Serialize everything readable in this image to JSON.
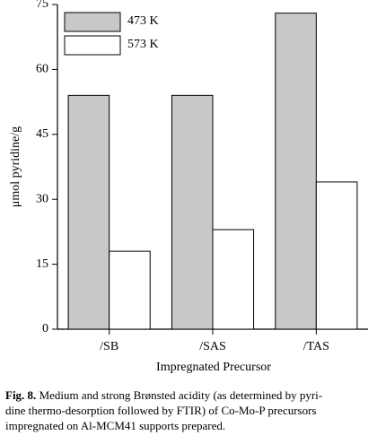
{
  "chart_data": {
    "type": "bar",
    "categories": [
      "/SB",
      "/SAS",
      "/TAS"
    ],
    "series": [
      {
        "name": "473 K",
        "color": "#c8c8c8",
        "values": [
          54,
          54,
          73
        ]
      },
      {
        "name": "573 K",
        "color": "#ffffff",
        "values": [
          18,
          23,
          34
        ]
      }
    ],
    "ylim": [
      0,
      75
    ],
    "yticks": [
      0,
      15,
      30,
      45,
      60,
      75
    ],
    "y_label": "μmol pyridine/g",
    "x_label": "Impregnated Precursor",
    "legend": "upper-left"
  },
  "caption": {
    "label": "Fig. 8.",
    "lines": [
      "Medium and strong Brønsted acidity (as determined by pyri-",
      "dine thermo-desorption followed by FTIR) of Co-Mo-P precursors",
      "impregnated on Al-MCM41 supports prepared."
    ]
  }
}
